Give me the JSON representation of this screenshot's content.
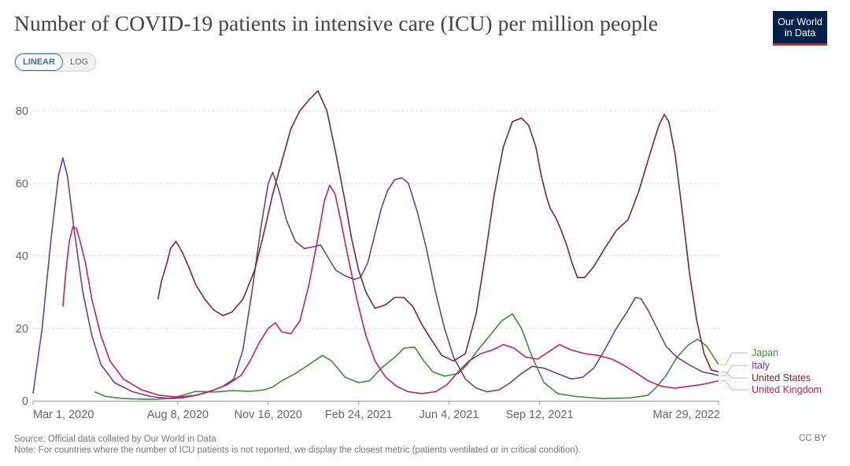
{
  "title": "Number of COVID-19 patients in intensive care (ICU) per million people",
  "logo": {
    "line1": "Our World",
    "line2": "in Data"
  },
  "toggle": {
    "linear": "LINEAR",
    "log": "LOG"
  },
  "footer": {
    "source": "Source: Official data collated by Our World in Data",
    "note": "Note: For countries where the number of ICU patients is not reported, we display the closest metric (patients ventilated or in critical condition)."
  },
  "license": "CC BY",
  "chart_data": {
    "type": "line",
    "xlabel": "",
    "ylabel": "",
    "ylim": [
      0,
      86
    ],
    "yticks": [
      0,
      20,
      40,
      60,
      80
    ],
    "x_tick_labels": [
      "Mar 1, 2020",
      "Aug 8, 2020",
      "Nov 16, 2020",
      "Feb 24, 2021",
      "Jun 4, 2021",
      "Sep 12, 2021",
      "Mar 29, 2022"
    ],
    "x_tick_days": [
      0,
      160,
      260,
      360,
      460,
      560,
      758
    ],
    "xlim_days": [
      0,
      758
    ],
    "grid": true,
    "legend": "right",
    "series": [
      {
        "name": "Japan",
        "color": "#3e8a3a",
        "points": [
          [
            68,
            2.5
          ],
          [
            80,
            1.2
          ],
          [
            100,
            0.6
          ],
          [
            130,
            0.4
          ],
          [
            150,
            0.6
          ],
          [
            165,
            1.5
          ],
          [
            180,
            2.6
          ],
          [
            200,
            2.4
          ],
          [
            220,
            2.8
          ],
          [
            240,
            2.6
          ],
          [
            255,
            3.0
          ],
          [
            265,
            3.8
          ],
          [
            275,
            5.5
          ],
          [
            290,
            7.5
          ],
          [
            305,
            10
          ],
          [
            320,
            12.5
          ],
          [
            330,
            11
          ],
          [
            345,
            6.5
          ],
          [
            360,
            5
          ],
          [
            372,
            5.5
          ],
          [
            385,
            9
          ],
          [
            400,
            12
          ],
          [
            410,
            14.5
          ],
          [
            422,
            14.8
          ],
          [
            432,
            11
          ],
          [
            442,
            8
          ],
          [
            455,
            6.8
          ],
          [
            470,
            7.5
          ],
          [
            480,
            10
          ],
          [
            492,
            14
          ],
          [
            505,
            18
          ],
          [
            518,
            22
          ],
          [
            530,
            24
          ],
          [
            540,
            20
          ],
          [
            552,
            12
          ],
          [
            565,
            5
          ],
          [
            580,
            2
          ],
          [
            600,
            1.2
          ],
          [
            630,
            0.6
          ],
          [
            660,
            0.8
          ],
          [
            680,
            1.5
          ],
          [
            690,
            4
          ],
          [
            700,
            7
          ],
          [
            712,
            12
          ],
          [
            725,
            15.5
          ],
          [
            735,
            17
          ],
          [
            745,
            15
          ],
          [
            758,
            10
          ]
        ]
      },
      {
        "name": "Italy",
        "color": "#6d3e91",
        "points": [
          [
            0,
            2
          ],
          [
            10,
            20
          ],
          [
            20,
            45
          ],
          [
            28,
            62
          ],
          [
            33,
            67
          ],
          [
            38,
            62
          ],
          [
            45,
            48
          ],
          [
            55,
            30
          ],
          [
            65,
            18
          ],
          [
            75,
            10
          ],
          [
            90,
            5
          ],
          [
            110,
            2.5
          ],
          [
            130,
            1.2
          ],
          [
            150,
            0.6
          ],
          [
            165,
            0.8
          ],
          [
            180,
            1.5
          ],
          [
            195,
            2.5
          ],
          [
            210,
            4
          ],
          [
            222,
            6
          ],
          [
            232,
            14
          ],
          [
            242,
            30
          ],
          [
            252,
            48
          ],
          [
            260,
            60
          ],
          [
            265,
            63
          ],
          [
            272,
            58
          ],
          [
            280,
            50
          ],
          [
            290,
            44
          ],
          [
            300,
            42
          ],
          [
            310,
            42.5
          ],
          [
            318,
            43
          ],
          [
            325,
            40
          ],
          [
            335,
            36
          ],
          [
            345,
            34.5
          ],
          [
            355,
            33.5
          ],
          [
            362,
            34
          ],
          [
            370,
            38
          ],
          [
            378,
            46
          ],
          [
            385,
            53
          ],
          [
            392,
            58
          ],
          [
            400,
            61
          ],
          [
            408,
            61.5
          ],
          [
            415,
            60
          ],
          [
            425,
            52
          ],
          [
            435,
            42
          ],
          [
            445,
            30
          ],
          [
            455,
            20
          ],
          [
            465,
            12
          ],
          [
            478,
            6
          ],
          [
            490,
            3.5
          ],
          [
            502,
            2.5
          ],
          [
            515,
            3
          ],
          [
            528,
            5
          ],
          [
            540,
            7.5
          ],
          [
            552,
            9.5
          ],
          [
            565,
            9
          ],
          [
            580,
            7.5
          ],
          [
            595,
            6
          ],
          [
            608,
            6.5
          ],
          [
            620,
            9
          ],
          [
            632,
            14
          ],
          [
            645,
            20
          ],
          [
            658,
            25
          ],
          [
            666,
            28.5
          ],
          [
            672,
            28.2
          ],
          [
            680,
            25
          ],
          [
            690,
            20
          ],
          [
            700,
            15
          ],
          [
            712,
            12
          ],
          [
            725,
            10
          ],
          [
            740,
            8
          ],
          [
            758,
            7
          ]
        ]
      },
      {
        "name": "United States",
        "color": "#7a2929",
        "points": [
          [
            138,
            28
          ],
          [
            142,
            33
          ],
          [
            148,
            38
          ],
          [
            152,
            42
          ],
          [
            158,
            44
          ],
          [
            165,
            41
          ],
          [
            172,
            37
          ],
          [
            180,
            32
          ],
          [
            190,
            28
          ],
          [
            200,
            25
          ],
          [
            210,
            23.5
          ],
          [
            220,
            24.5
          ],
          [
            232,
            28
          ],
          [
            245,
            36
          ],
          [
            255,
            46
          ],
          [
            265,
            57
          ],
          [
            275,
            66
          ],
          [
            285,
            75
          ],
          [
            295,
            80
          ],
          [
            305,
            83
          ],
          [
            315,
            85.5
          ],
          [
            325,
            80
          ],
          [
            335,
            68
          ],
          [
            345,
            55
          ],
          [
            352,
            45
          ],
          [
            360,
            36
          ],
          [
            368,
            30
          ],
          [
            378,
            25.5
          ],
          [
            390,
            26.5
          ],
          [
            400,
            28.5
          ],
          [
            410,
            28.5
          ],
          [
            420,
            26
          ],
          [
            430,
            21
          ],
          [
            440,
            17
          ],
          [
            452,
            12.5
          ],
          [
            465,
            11
          ],
          [
            478,
            13
          ],
          [
            490,
            24
          ],
          [
            500,
            40
          ],
          [
            510,
            57
          ],
          [
            520,
            70
          ],
          [
            530,
            77
          ],
          [
            540,
            78
          ],
          [
            548,
            76
          ],
          [
            556,
            70
          ],
          [
            562,
            62
          ],
          [
            568,
            56
          ],
          [
            572,
            53
          ],
          [
            578,
            50.5
          ],
          [
            584,
            47
          ],
          [
            590,
            43
          ],
          [
            596,
            38
          ],
          [
            602,
            34
          ],
          [
            610,
            34
          ],
          [
            620,
            37
          ],
          [
            632,
            42
          ],
          [
            645,
            47
          ],
          [
            658,
            50
          ],
          [
            670,
            58
          ],
          [
            682,
            68
          ],
          [
            692,
            76
          ],
          [
            698,
            79
          ],
          [
            703,
            77
          ],
          [
            710,
            68
          ],
          [
            718,
            52
          ],
          [
            726,
            35
          ],
          [
            734,
            22
          ],
          [
            742,
            13
          ],
          [
            750,
            8.5
          ],
          [
            758,
            8
          ]
        ]
      },
      {
        "name": "United Kingdom",
        "color": "#c6225b",
        "points": [
          [
            33,
            26
          ],
          [
            36,
            35
          ],
          [
            40,
            44
          ],
          [
            44,
            48
          ],
          [
            48,
            47.5
          ],
          [
            52,
            44
          ],
          [
            58,
            38
          ],
          [
            65,
            28
          ],
          [
            75,
            18
          ],
          [
            85,
            11
          ],
          [
            100,
            6
          ],
          [
            120,
            3
          ],
          [
            140,
            1.5
          ],
          [
            160,
            1
          ],
          [
            180,
            1.5
          ],
          [
            200,
            3
          ],
          [
            215,
            4.5
          ],
          [
            230,
            7
          ],
          [
            240,
            11
          ],
          [
            250,
            16
          ],
          [
            260,
            20
          ],
          [
            268,
            21.5
          ],
          [
            275,
            19
          ],
          [
            285,
            18.5
          ],
          [
            295,
            22
          ],
          [
            305,
            32
          ],
          [
            315,
            45
          ],
          [
            322,
            55
          ],
          [
            328,
            59.5
          ],
          [
            334,
            57
          ],
          [
            340,
            50
          ],
          [
            348,
            40
          ],
          [
            358,
            28
          ],
          [
            368,
            18
          ],
          [
            378,
            11
          ],
          [
            390,
            6.5
          ],
          [
            402,
            4
          ],
          [
            415,
            2.5
          ],
          [
            430,
            2
          ],
          [
            445,
            2.5
          ],
          [
            458,
            4.5
          ],
          [
            470,
            8
          ],
          [
            482,
            11
          ],
          [
            495,
            13
          ],
          [
            508,
            14
          ],
          [
            520,
            15.5
          ],
          [
            532,
            14.5
          ],
          [
            545,
            12
          ],
          [
            558,
            11.5
          ],
          [
            570,
            13.5
          ],
          [
            582,
            15.5
          ],
          [
            595,
            14
          ],
          [
            610,
            13
          ],
          [
            625,
            12.5
          ],
          [
            640,
            11.5
          ],
          [
            652,
            10
          ],
          [
            665,
            8
          ],
          [
            680,
            5.5
          ],
          [
            695,
            4
          ],
          [
            710,
            3.5
          ],
          [
            725,
            4
          ],
          [
            740,
            4.5
          ],
          [
            758,
            5.5
          ]
        ]
      }
    ]
  }
}
